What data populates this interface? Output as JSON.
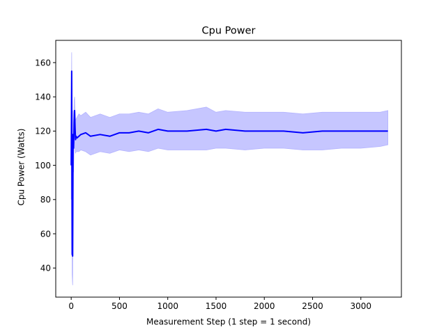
{
  "chart_data": {
    "type": "line",
    "title": "Cpu Power",
    "xlabel": "Measurement Step (1 step = 1 second)",
    "ylabel": "Cpu Power (Watts)",
    "xlim": [
      -160,
      3420
    ],
    "ylim": [
      23,
      173
    ],
    "xticks": [
      0,
      500,
      1000,
      1500,
      2000,
      2500,
      3000
    ],
    "yticks": [
      40,
      60,
      80,
      100,
      120,
      140,
      160
    ],
    "grid": false,
    "series": [
      {
        "role": "mean",
        "color": "#0000ff",
        "x": [
          0,
          5,
          10,
          15,
          20,
          25,
          30,
          35,
          40,
          45,
          50,
          60,
          80,
          100,
          150,
          200,
          300,
          400,
          500,
          600,
          700,
          800,
          900,
          1000,
          1200,
          1400,
          1500,
          1600,
          1800,
          2000,
          2200,
          2400,
          2600,
          2800,
          3000,
          3200,
          3280
        ],
        "y": [
          100,
          155,
          48,
          47,
          118,
          110,
          125,
          132,
          122,
          115,
          117,
          116,
          117,
          118,
          119,
          117,
          118,
          117,
          119,
          119,
          120,
          119,
          121,
          120,
          120,
          121,
          120,
          121,
          120,
          120,
          120,
          119,
          120,
          120,
          120,
          120,
          120
        ]
      },
      {
        "role": "band",
        "color": "#b3b3ff",
        "x": [
          0,
          5,
          10,
          15,
          20,
          25,
          30,
          35,
          40,
          45,
          50,
          60,
          80,
          100,
          150,
          200,
          300,
          400,
          500,
          600,
          700,
          800,
          900,
          1000,
          1200,
          1400,
          1500,
          1600,
          1800,
          2000,
          2200,
          2400,
          2600,
          2800,
          3000,
          3200,
          3280
        ],
        "upper": [
          120,
          166,
          63,
          55,
          132,
          125,
          138,
          140,
          132,
          126,
          127,
          128,
          130,
          129,
          131,
          128,
          130,
          128,
          130,
          130,
          131,
          130,
          133,
          131,
          132,
          134,
          131,
          132,
          131,
          131,
          131,
          130,
          131,
          131,
          131,
          131,
          132
        ],
        "lower": [
          80,
          145,
          36,
          30,
          104,
          96,
          112,
          120,
          110,
          107,
          108,
          108,
          108,
          109,
          108,
          106,
          108,
          107,
          109,
          108,
          109,
          108,
          110,
          109,
          109,
          109,
          110,
          110,
          109,
          110,
          110,
          109,
          109,
          110,
          110,
          111,
          112
        ]
      }
    ]
  }
}
